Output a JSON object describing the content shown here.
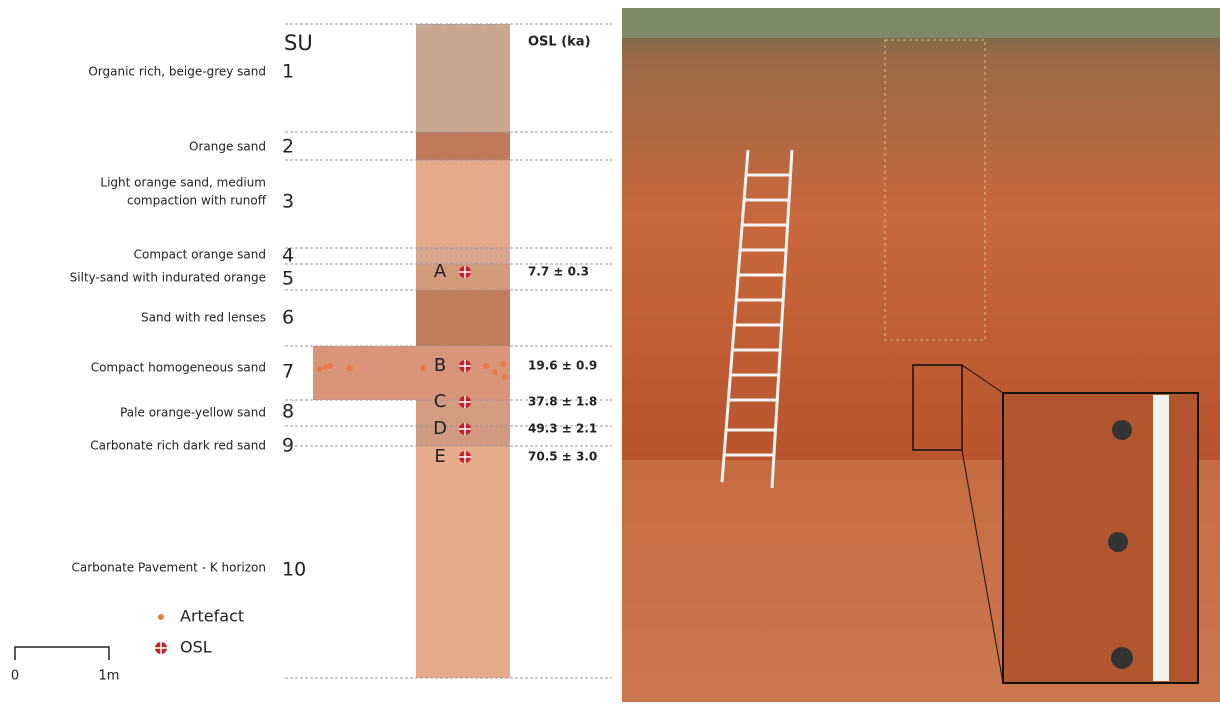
{
  "header": {
    "su_heading": "SU",
    "osl_heading": "OSL (ka)"
  },
  "layers": [
    {
      "su": "1",
      "description": [
        "Organic rich, beige-grey sand"
      ],
      "color": "#c9a68f"
    },
    {
      "su": "2",
      "description": [
        "Orange sand"
      ],
      "color": "#c07a5b"
    },
    {
      "su": "3",
      "description": [
        "Light orange sand, medium",
        "compaction with runoff"
      ],
      "color": "#e3a98a"
    },
    {
      "su": "4",
      "description": [
        "Compact orange sand"
      ],
      "color": "#d9a88f"
    },
    {
      "su": "5",
      "description": [
        "Silty-sand with indurated orange"
      ],
      "color": "#d49a7c"
    },
    {
      "su": "6",
      "description": [
        "Sand with red lenses"
      ],
      "color": "#c07c5c"
    },
    {
      "su": "7",
      "description": [
        "Compact homogeneous sand"
      ],
      "color": "#d9957a"
    },
    {
      "su": "8",
      "description": [
        "Pale orange-yellow sand"
      ],
      "color": "#d39c81"
    },
    {
      "su": "9",
      "description": [
        "Carbonate rich dark red sand"
      ],
      "color": "#d09a80"
    },
    {
      "su": "10",
      "description": [
        "Carbonate Pavement - K horizon"
      ],
      "color": "#e6ab8b"
    }
  ],
  "samples": [
    {
      "id": "A",
      "age": "7.7 ± 0.3"
    },
    {
      "id": "B",
      "age": "19.6 ± 0.9"
    },
    {
      "id": "C",
      "age": "37.8 ± 1.8"
    },
    {
      "id": "D",
      "age": "49.3 ± 2.1"
    },
    {
      "id": "E",
      "age": "70.5 ± 3.0"
    }
  ],
  "legend": {
    "artefact": "Artefact",
    "osl": "OSL"
  },
  "scale": {
    "start": "0",
    "end": "1m"
  }
}
